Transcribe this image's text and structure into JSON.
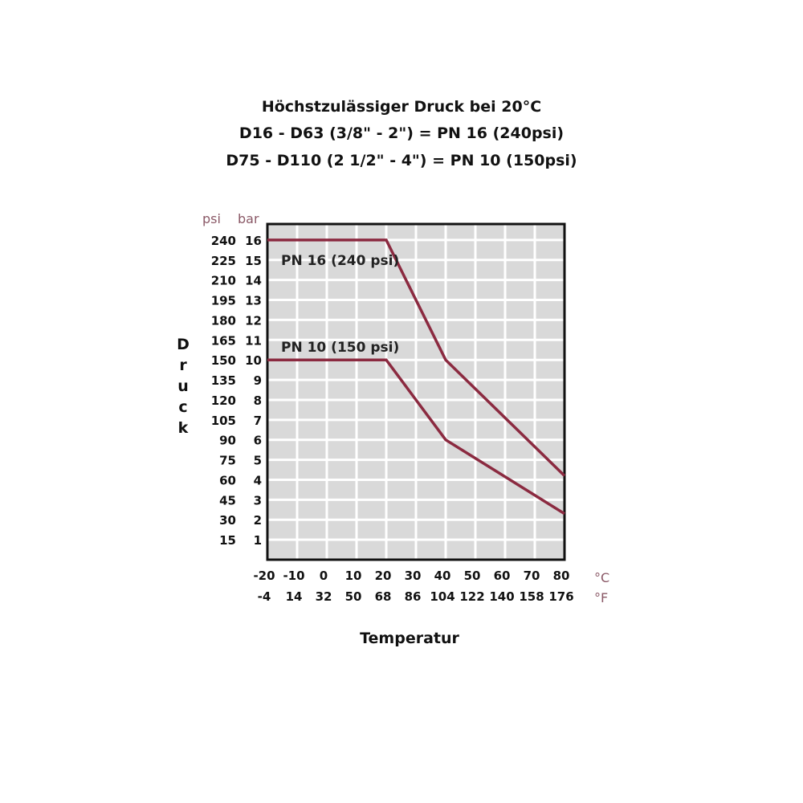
{
  "chart_data": {
    "type": "line",
    "title": [
      "Höchstzulässiger Druck bei 20°C",
      "D16 - D63 (3/8\" - 2\") = PN 16 (240psi)",
      "D75 - D110 (2 1/2\" - 4\") = PN 10 (150psi)"
    ],
    "xlabel": "Temperatur",
    "ylabel": "Druck",
    "x_unit_c": "°C",
    "x_unit_f": "°F",
    "y_unit_psi": "psi",
    "y_unit_bar": "bar",
    "xlim": [
      -20,
      80
    ],
    "ylim": [
      0,
      16.8
    ],
    "x_ticks_c": [
      "-20",
      "-10",
      "0",
      "10",
      "20",
      "30",
      "40",
      "50",
      "60",
      "70",
      "80"
    ],
    "x_ticks_f": [
      "-4",
      "14",
      "32",
      "50",
      "68",
      "86",
      "104",
      "122",
      "140",
      "158",
      "176"
    ],
    "y_ticks_bar": [
      "1",
      "2",
      "3",
      "4",
      "5",
      "6",
      "7",
      "8",
      "9",
      "10",
      "11",
      "12",
      "13",
      "14",
      "15",
      "16"
    ],
    "y_ticks_psi": [
      "15",
      "30",
      "45",
      "60",
      "75",
      "90",
      "105",
      "120",
      "135",
      "150",
      "165",
      "180",
      "195",
      "210",
      "225",
      "240"
    ],
    "grid": true,
    "series": [
      {
        "name": "PN 16 (240 psi)",
        "x": [
          -20,
          20,
          40,
          80
        ],
        "y": [
          16,
          16,
          10,
          4.2
        ]
      },
      {
        "name": "PN 10 (150 psi)",
        "x": [
          -20,
          20,
          40,
          80
        ],
        "y": [
          10,
          10,
          6,
          2.3
        ]
      }
    ],
    "colors": {
      "line": "#8b2a40",
      "plot_bg": "#d9d9d9",
      "grid": "#ffffff"
    }
  }
}
